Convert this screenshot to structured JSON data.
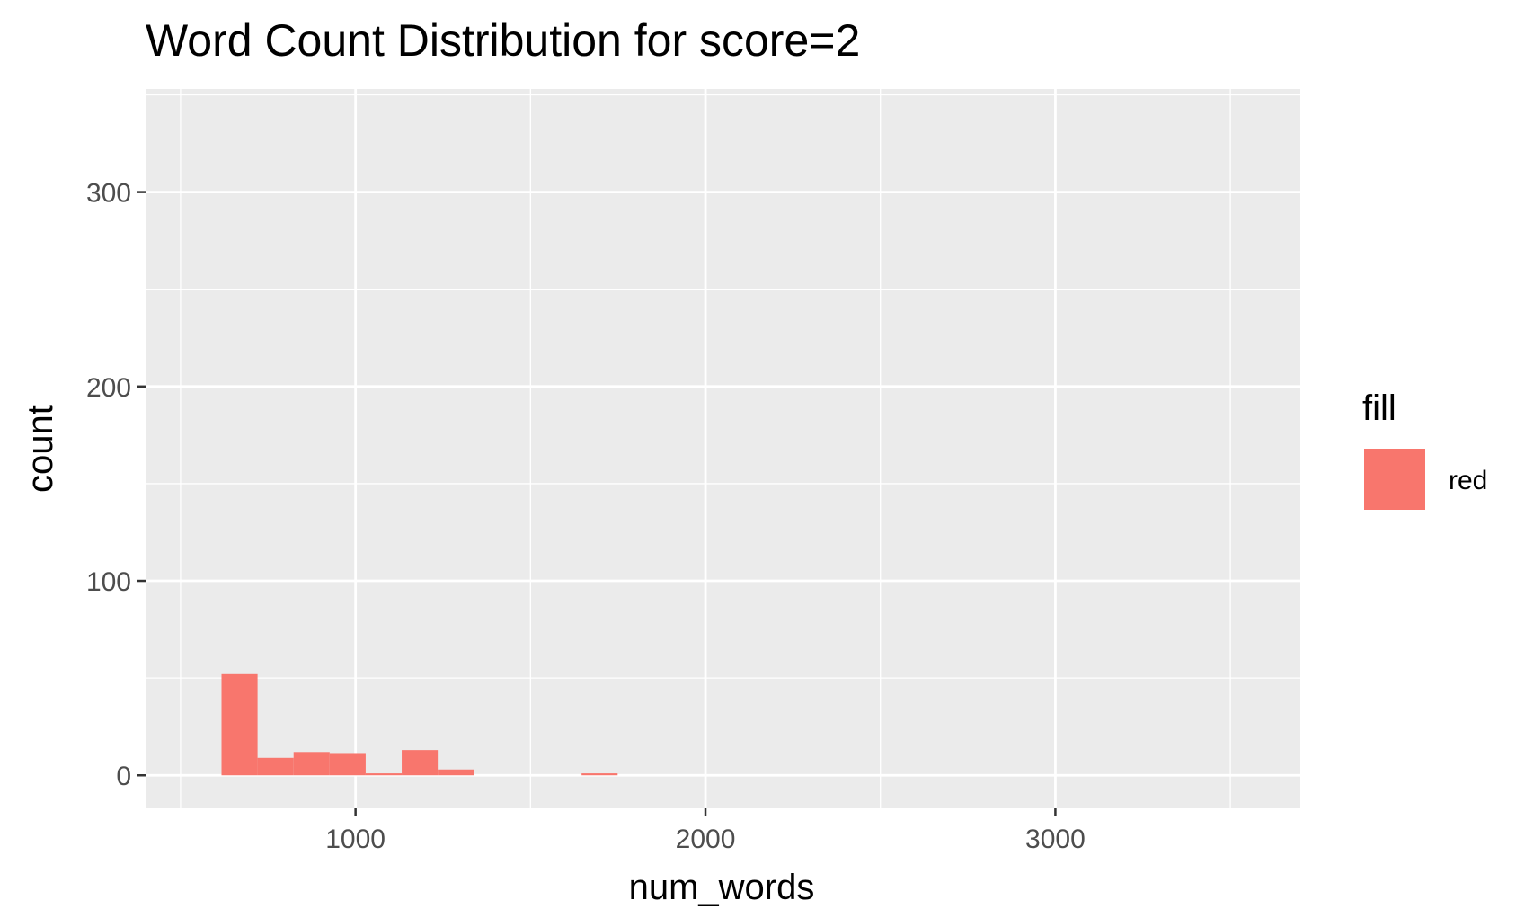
{
  "chart_data": {
    "type": "bar",
    "title": "Word Count Distribution for score=2",
    "xlabel": "num_words",
    "ylabel": "count",
    "xlim": [
      400,
      3700
    ],
    "ylim": [
      -17,
      353
    ],
    "x_ticks": [
      1000,
      2000,
      3000
    ],
    "x_tick_labels": [
      "1000",
      "2000",
      "3000"
    ],
    "x_minor_ticks": [
      500,
      1500,
      2500,
      3500
    ],
    "y_ticks": [
      0,
      100,
      200,
      300
    ],
    "y_tick_labels": [
      "0",
      "100",
      "200",
      "300"
    ],
    "y_minor_ticks": [
      50,
      150,
      250,
      350
    ],
    "grid": true,
    "bin_width": 103,
    "bins": [
      {
        "start": 617,
        "end": 720,
        "count": 52
      },
      {
        "start": 720,
        "end": 823,
        "count": 9
      },
      {
        "start": 823,
        "end": 926,
        "count": 12
      },
      {
        "start": 926,
        "end": 1029,
        "count": 11
      },
      {
        "start": 1029,
        "end": 1132,
        "count": 1
      },
      {
        "start": 1132,
        "end": 1235,
        "count": 13
      },
      {
        "start": 1235,
        "end": 1338,
        "count": 3
      },
      {
        "start": 1646,
        "end": 1749,
        "count": 1
      }
    ],
    "series": [
      {
        "name": "red",
        "color": "#f8766d"
      }
    ],
    "legend": {
      "title": "fill",
      "position": "right",
      "entries": [
        "red"
      ]
    },
    "colors": {
      "panel": "#ebebeb",
      "grid": "#ffffff",
      "bar": "#f8766d",
      "tick_text": "#4d4d4d"
    }
  }
}
